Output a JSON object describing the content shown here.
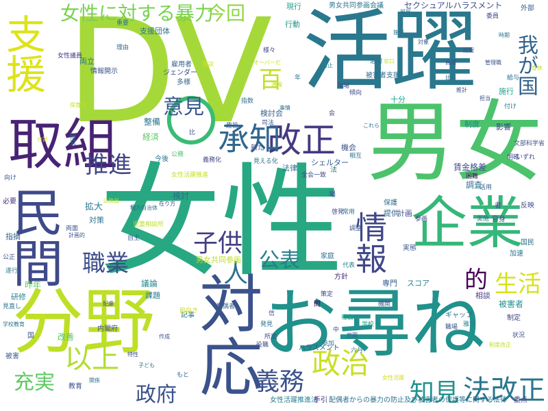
{
  "words": [
    {
      "text": "女性",
      "color": "#27a882"
    },
    {
      "text": "DV",
      "color": "#a5d93a"
    },
    {
      "text": "活躍",
      "color": "#2a788e"
    },
    {
      "text": "男女",
      "color": "#4cc26c"
    },
    {
      "text": "お尋ね",
      "color": "#21918c"
    },
    {
      "text": "分野",
      "color": "#bddf26"
    },
    {
      "text": "取組",
      "color": "#482374"
    },
    {
      "text": "対応",
      "color": "#3b528b"
    },
    {
      "text": "企業",
      "color": "#35b779"
    },
    {
      "text": "民間",
      "color": "#3e4a89"
    },
    {
      "text": "支援",
      "color": "#dde318"
    },
    {
      "text": "改正",
      "color": "#443983"
    },
    {
      "text": "〇",
      "color": "#3bbb75"
    },
    {
      "text": "承知",
      "color": "#31668e"
    },
    {
      "text": "情報",
      "color": "#3f4788"
    },
    {
      "text": "政治",
      "color": "#c8e020"
    },
    {
      "text": "以上",
      "color": "#b0dd2f"
    },
    {
      "text": "法改正",
      "color": "#2a768e"
    },
    {
      "text": "義務",
      "color": "#3b518b"
    },
    {
      "text": "知見",
      "color": "#20938c"
    },
    {
      "text": "子供",
      "color": "#433e85"
    },
    {
      "text": "推進",
      "color": "#414487"
    },
    {
      "text": "女性に対する暴力",
      "color": "#7ad151"
    },
    {
      "text": "今回",
      "color": "#8fd744"
    },
    {
      "text": "職業",
      "color": "#3d4e8a"
    },
    {
      "text": "生活",
      "color": "#d8e219"
    },
    {
      "text": "百",
      "color": "#c2df23"
    },
    {
      "text": "公表",
      "color": "#287c8e"
    },
    {
      "text": "政府",
      "color": "#3b528b"
    },
    {
      "text": "充実",
      "color": "#5ec962"
    },
    {
      "text": "意見",
      "color": "#38598c"
    },
    {
      "text": "我が国",
      "color": "#33638d"
    },
    {
      "text": "的",
      "color": "#440154"
    },
    {
      "text": "人",
      "color": "#2c728e"
    },
    {
      "text": "セクシュアルハラスメント",
      "color": "#3e4c8a"
    },
    {
      "text": "男女共同参画会議",
      "color": "#2a788e"
    },
    {
      "text": "現行",
      "color": "#1f9e89"
    },
    {
      "text": "支援団体",
      "color": "#2c728e"
    },
    {
      "text": "行動",
      "color": "#21918c"
    },
    {
      "text": "雇用者",
      "color": "#33638d"
    },
    {
      "text": "両立",
      "color": "#2d708e"
    },
    {
      "text": "女性議員",
      "color": "#463480"
    },
    {
      "text": "情報開示",
      "color": "#39568c"
    },
    {
      "text": "理由",
      "color": "#2f6c8e"
    },
    {
      "text": "ジェンダー",
      "color": "#3e4989"
    },
    {
      "text": "多様",
      "color": "#32658e"
    },
    {
      "text": "被害者支援",
      "color": "#2f6b8e"
    },
    {
      "text": "経済",
      "color": "#5cc863"
    },
    {
      "text": "整備",
      "color": "#2b748e"
    },
    {
      "text": "検討会",
      "color": "#355e8d"
    },
    {
      "text": "法律",
      "color": "#2c718e"
    },
    {
      "text": "シェルター",
      "color": "#365c8d"
    },
    {
      "text": "賃金格差",
      "color": "#3d4d8a"
    },
    {
      "text": "調査",
      "color": "#2e6e8e"
    },
    {
      "text": "制度",
      "color": "#23898e"
    },
    {
      "text": "影響",
      "color": "#404688"
    },
    {
      "text": "機会",
      "color": "#3b528b"
    },
    {
      "text": "十分",
      "color": "#20a386"
    },
    {
      "text": "施行",
      "color": "#1e9c89"
    },
    {
      "text": "検討",
      "color": "#31688e"
    },
    {
      "text": "拡大",
      "color": "#2a788e"
    },
    {
      "text": "対策",
      "color": "#2c728e"
    },
    {
      "text": "必要",
      "color": "#46307e"
    },
    {
      "text": "指摘",
      "color": "#355f8d"
    },
    {
      "text": "研修",
      "color": "#26828e"
    },
    {
      "text": "昨年",
      "color": "#5ac864"
    },
    {
      "text": "議論",
      "color": "#25848e"
    },
    {
      "text": "課題",
      "color": "#2a778e"
    },
    {
      "text": "改善",
      "color": "#52c569"
    },
    {
      "text": "被害",
      "color": "#38588c"
    },
    {
      "text": "教育",
      "color": "#3d4e8a"
    },
    {
      "text": "家庭",
      "color": "#2e6f8e"
    },
    {
      "text": "提供",
      "color": "#32658e"
    },
    {
      "text": "計画",
      "color": "#3e4c8a"
    },
    {
      "text": "専門",
      "color": "#355e8d"
    },
    {
      "text": "スコア",
      "color": "#26828e"
    },
    {
      "text": "被害者",
      "color": "#228d8d"
    },
    {
      "text": "相談",
      "color": "#433e85"
    },
    {
      "text": "ハラスメント",
      "color": "#375a8c"
    },
    {
      "text": "配偶者からの暴力の防止及び被害者の保護等に関する法律",
      "color": "#2d708e"
    },
    {
      "text": "女性活躍推進法",
      "color": "#277f8e"
    },
    {
      "text": "手引",
      "color": "#46327e"
    },
    {
      "text": "重点",
      "color": "#414487"
    },
    {
      "text": "男女共同参画",
      "color": "#bade28"
    },
    {
      "text": "内閣府",
      "color": "#3f4889"
    },
    {
      "text": "記事",
      "color": "#2b748e"
    },
    {
      "text": "配偶者",
      "color": "#34618d"
    },
    {
      "text": "国民",
      "color": "#2d708e"
    },
    {
      "text": "実態",
      "color": "#3a548c"
    },
    {
      "text": "加速",
      "color": "#2b748e"
    },
    {
      "text": "困難",
      "color": "#471365"
    },
    {
      "text": "活用",
      "color": "#33638d"
    },
    {
      "text": "向け",
      "color": "#39568c"
    },
    {
      "text": "実施",
      "color": "#2e6e8e"
    },
    {
      "text": "反映",
      "color": "#3e4a89"
    },
    {
      "text": "保護",
      "color": "#2f6c8e"
    },
    {
      "text": "自身",
      "color": "#3f4889"
    },
    {
      "text": "参画",
      "color": "#424086"
    },
    {
      "text": "方針",
      "color": "#482878"
    },
    {
      "text": "ギャップ",
      "color": "#2c728e"
    },
    {
      "text": "職場",
      "color": "#3b528b"
    },
    {
      "text": "雅富",
      "color": "#25858e"
    },
    {
      "text": "社会",
      "color": "#22a785"
    },
    {
      "text": "学校",
      "color": "#1fa088"
    },
    {
      "text": "役職",
      "color": "#3c4f8a"
    },
    {
      "text": "参加",
      "color": "#2d708e"
    },
    {
      "text": "制定",
      "color": "#433e85"
    },
    {
      "text": "状況",
      "color": "#3b528b"
    },
    {
      "text": "所定",
      "color": "#414487"
    },
    {
      "text": "啓発",
      "color": "#3e4c8a"
    },
    {
      "text": "常用",
      "color": "#2c728e"
    },
    {
      "text": "代表",
      "color": "#26828e"
    },
    {
      "text": "新た",
      "color": "#3a548c"
    },
    {
      "text": "今後",
      "color": "#29798e"
    },
    {
      "text": "公務",
      "color": "#4ac16d"
    },
    {
      "text": "全会一致",
      "color": "#3e4989"
    },
    {
      "text": "義務化",
      "color": "#414487"
    },
    {
      "text": "見える化",
      "color": "#2b748e"
    },
    {
      "text": "外部",
      "color": "#375a8c"
    },
    {
      "text": "給与",
      "color": "#2d708e"
    },
    {
      "text": "付け",
      "color": "#2a768e"
    },
    {
      "text": "文部科学省",
      "color": "#3b528b"
    },
    {
      "text": "いずれ",
      "color": "#3f4788"
    },
    {
      "text": "両面",
      "color": "#3b518b"
    },
    {
      "text": "自主",
      "color": "#38588c"
    },
    {
      "text": "児童相談所",
      "color": "#bade28"
    },
    {
      "text": "地方自治体",
      "color": "#2e6f8e"
    },
    {
      "text": "計画的",
      "color": "#3b528b"
    },
    {
      "text": "子ども",
      "color": "#2b748e"
    },
    {
      "text": "特性",
      "color": "#3e4c8a"
    },
    {
      "text": "関係",
      "color": "#2c728e"
    },
    {
      "text": "もと",
      "color": "#32658e"
    },
    {
      "text": "様々",
      "color": "#3e4989"
    },
    {
      "text": "指数",
      "color": "#2c728e"
    },
    {
      "text": "司法",
      "color": "#39568c"
    },
    {
      "text": "事情",
      "color": "#2e6f8e"
    },
    {
      "text": "現場",
      "color": "#3b528b"
    },
    {
      "text": "傾向",
      "color": "#3e4c8a"
    },
    {
      "text": "適切",
      "color": "#2c728e"
    },
    {
      "text": "防止",
      "color": "#26828e"
    },
    {
      "text": "重要",
      "color": "#2b748e"
    },
    {
      "text": "国",
      "color": "#3b528b"
    },
    {
      "text": "委員",
      "color": "#3e4989"
    },
    {
      "text": "年",
      "color": "#2c728e"
    },
    {
      "text": "者",
      "color": "#414487"
    },
    {
      "text": "問",
      "color": "#440154"
    },
    {
      "text": "比",
      "color": "#3b528b"
    },
    {
      "text": "見直し",
      "color": "#2c728e"
    },
    {
      "text": "公正",
      "color": "#3e4c8a"
    },
    {
      "text": "遂行",
      "color": "#2b748e"
    },
    {
      "text": "策定",
      "color": "#414487"
    },
    {
      "text": "場",
      "color": "#3b528b"
    },
    {
      "text": "化",
      "color": "#2c728e"
    },
    {
      "text": "明確",
      "color": "#3e4c8a"
    },
    {
      "text": "研究",
      "color": "#2b748e"
    },
    {
      "text": "趣旨",
      "color": "#38588c"
    },
    {
      "text": "調整",
      "color": "#3b528b"
    },
    {
      "text": "前向き",
      "color": "#c8e020"
    },
    {
      "text": "相互",
      "color": "#2c728e"
    },
    {
      "text": "会",
      "color": "#414487"
    },
    {
      "text": "信",
      "color": "#3b528b"
    },
    {
      "text": "法",
      "color": "#2c728e"
    },
    {
      "text": "中",
      "color": "#3e4c8a"
    },
    {
      "text": "六月",
      "color": "#2b748e"
    },
    {
      "text": "世間",
      "color": "#38588c"
    },
    {
      "text": "作成",
      "color": "#3b528b"
    },
    {
      "text": "これら",
      "color": "#2c728e"
    },
    {
      "text": "機関",
      "color": "#3e4c8a"
    },
    {
      "text": "発見",
      "color": "#2b748e"
    },
    {
      "text": "配慮",
      "color": "#3b528b"
    },
    {
      "text": "女性活躍推進",
      "color": "#c8e020"
    },
    {
      "text": "当時",
      "color": "#d0e11c"
    },
    {
      "text": "学校教育",
      "color": "#2c728e"
    },
    {
      "text": "在り方",
      "color": "#3e4c8a"
    },
    {
      "text": "制度改正",
      "color": "#bade28"
    },
    {
      "text": "オーバーだ",
      "color": "#c8e020"
    },
    {
      "text": "合計",
      "color": "#d8e219"
    },
    {
      "text": "保育所",
      "color": "#bddf26"
    },
    {
      "text": "公務員",
      "color": "#c2df23"
    },
    {
      "text": "女性活躍",
      "color": "#d0e11c"
    },
    {
      "text": "窓口",
      "color": "#c8e020"
    },
    {
      "text": "通報",
      "color": "#bade28"
    },
    {
      "text": "面談",
      "color": "#d8e219"
    },
    {
      "text": "育休",
      "color": "#c2df23"
    },
    {
      "text": "管理職",
      "color": "#3b528b"
    },
    {
      "text": "比率",
      "color": "#2c728e"
    },
    {
      "text": "推計",
      "color": "#3e4c8a"
    },
    {
      "text": "部局",
      "color": "#2b748e"
    },
    {
      "text": "把握",
      "color": "#3b528b"
    },
    {
      "text": "施策",
      "color": "#2c728e"
    },
    {
      "text": "対象",
      "color": "#38588c"
    },
    {
      "text": "目標",
      "color": "#3e4c8a"
    },
    {
      "text": "時期",
      "color": "#2b748e"
    },
    {
      "text": "担当",
      "color": "#3b528b"
    }
  ]
}
